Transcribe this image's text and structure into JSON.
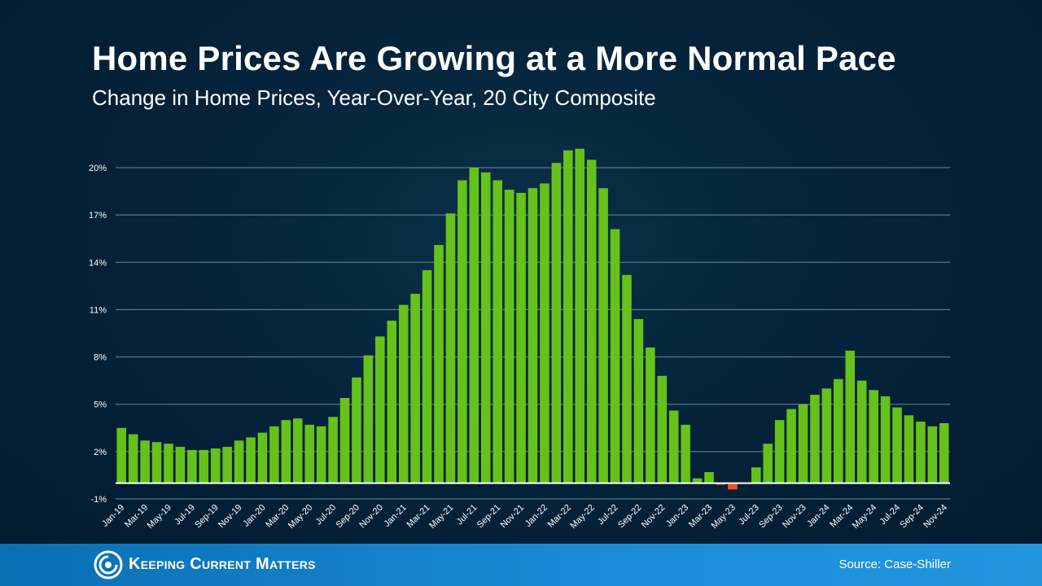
{
  "header": {
    "title": "Home Prices Are Growing at a More Normal Pace",
    "subtitle": "Change in Home Prices, Year-Over-Year, 20 City Composite"
  },
  "footer": {
    "brand": "Keeping Current Matters",
    "source": "Source: Case-Shiller"
  },
  "colors": {
    "positive": "#66c21a",
    "negative": "#f2561d",
    "gridline": "#6f8796",
    "zeroline": "#ffffff"
  },
  "chart_data": {
    "type": "bar",
    "title": "Home Prices Are Growing at a More Normal Pace",
    "subtitle": "Change in Home Prices, Year-Over-Year, 20 City Composite",
    "y_ticks": [
      "-1%",
      "2%",
      "5%",
      "8%",
      "11%",
      "14%",
      "17%",
      "20%"
    ],
    "ylim": [
      -1,
      20
    ],
    "grid": true,
    "categories": [
      "Jan-19",
      "Feb-19",
      "Mar-19",
      "Apr-19",
      "May-19",
      "Jun-19",
      "Jul-19",
      "Aug-19",
      "Sep-19",
      "Oct-19",
      "Nov-19",
      "Dec-19",
      "Jan-20",
      "Feb-20",
      "Mar-20",
      "Apr-20",
      "May-20",
      "Jun-20",
      "Jul-20",
      "Aug-20",
      "Sep-20",
      "Oct-20",
      "Nov-20",
      "Dec-20",
      "Jan-21",
      "Feb-21",
      "Mar-21",
      "Apr-21",
      "May-21",
      "Jun-21",
      "Jul-21",
      "Aug-21",
      "Sep-21",
      "Oct-21",
      "Nov-21",
      "Dec-21",
      "Jan-22",
      "Feb-22",
      "Mar-22",
      "Apr-22",
      "May-22",
      "Jun-22",
      "Jul-22",
      "Aug-22",
      "Sep-22",
      "Oct-22",
      "Nov-22",
      "Dec-22",
      "Jan-23",
      "Feb-23",
      "Mar-23",
      "Apr-23",
      "May-23",
      "Jun-23",
      "Jul-23",
      "Aug-23",
      "Sep-23",
      "Oct-23",
      "Nov-23",
      "Dec-23",
      "Jan-24",
      "Feb-24",
      "Mar-24",
      "Apr-24",
      "May-24",
      "Jun-24",
      "Jul-24",
      "Aug-24",
      "Sep-24",
      "Oct-24",
      "Nov-24"
    ],
    "tick_labels": [
      "Jan-19",
      "Mar-19",
      "May-19",
      "Jul-19",
      "Sep-19",
      "Nov-19",
      "Jan-20",
      "Mar-20",
      "May-20",
      "Jul-20",
      "Sep-20",
      "Nov-20",
      "Jan-21",
      "Mar-21",
      "May-21",
      "Jul-21",
      "Sep-21",
      "Nov-21",
      "Jan-22",
      "Mar-22",
      "May-22",
      "Jul-22",
      "Sep-22",
      "Nov-22",
      "Jan-23",
      "Mar-23",
      "May-23",
      "Jul-23",
      "Sep-23",
      "Nov-23",
      "Jan-24",
      "Mar-24",
      "May-24",
      "Jul-24",
      "Sep-24",
      "Nov-24"
    ],
    "values": [
      3.5,
      3.1,
      2.7,
      2.6,
      2.5,
      2.3,
      2.1,
      2.1,
      2.2,
      2.3,
      2.7,
      2.9,
      3.2,
      3.6,
      4.0,
      4.1,
      3.7,
      3.6,
      4.2,
      5.4,
      6.7,
      8.1,
      9.3,
      10.3,
      11.3,
      12.0,
      13.5,
      15.1,
      17.1,
      19.2,
      20.0,
      19.7,
      19.2,
      18.6,
      18.4,
      18.7,
      19.0,
      20.3,
      21.1,
      21.2,
      20.5,
      18.7,
      16.1,
      13.2,
      10.4,
      8.6,
      6.8,
      4.6,
      3.7,
      0.3,
      0.7,
      -0.1,
      -0.4,
      0.0,
      1.0,
      2.5,
      4.0,
      4.7,
      5.0,
      5.6,
      6.0,
      6.6,
      8.4,
      6.5,
      5.9,
      5.5,
      4.8,
      4.3,
      3.9,
      3.6,
      3.8
    ]
  }
}
